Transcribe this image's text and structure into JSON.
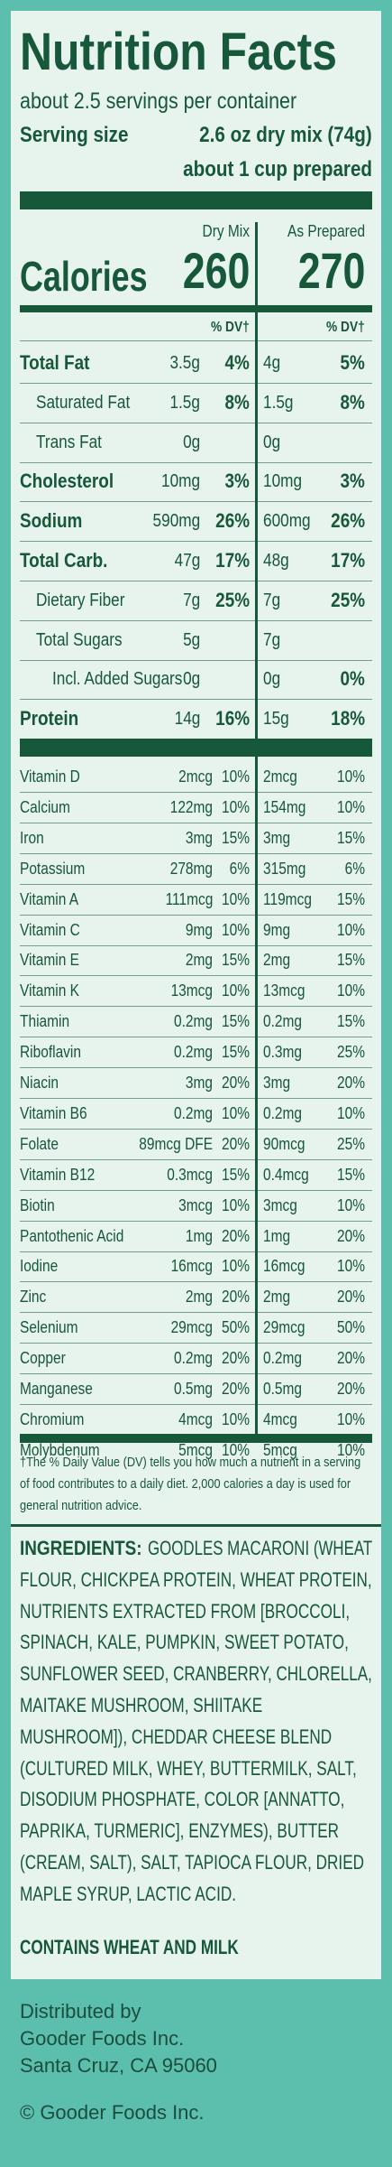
{
  "header": {
    "title": "Nutrition Facts",
    "servings": "about 2.5 servings per container",
    "serving_size_label": "Serving size",
    "serving_size": "2.6 oz dry mix (74g)",
    "serving_prepared": "about 1 cup prepared"
  },
  "columns": {
    "dry": "Dry Mix",
    "prepared": "As Prepared",
    "dv_heading": "% DV†"
  },
  "calories": {
    "label": "Calories",
    "dry": "260",
    "prepared": "270"
  },
  "nutrients": [
    {
      "name": "Total Fat",
      "dry": "3.5g",
      "dry_dv": "4%",
      "prep": "4g",
      "prep_dv": "5%"
    },
    {
      "name": "Saturated Fat",
      "dry": "1.5g",
      "dry_dv": "8%",
      "prep": "1.5g",
      "prep_dv": "8%"
    },
    {
      "name": "Trans Fat",
      "dry": "0g",
      "prep": "0g"
    },
    {
      "name": "Cholesterol",
      "dry": "10mg",
      "dry_dv": "3%",
      "prep": "10mg",
      "prep_dv": "3%"
    },
    {
      "name": "Sodium",
      "dry": "590mg",
      "dry_dv": "26%",
      "prep": "600mg",
      "prep_dv": "26%"
    },
    {
      "name": "Total Carb.",
      "dry": "47g",
      "dry_dv": "17%",
      "prep": "48g",
      "prep_dv": "17%"
    },
    {
      "name": "Dietary Fiber",
      "dry": "7g",
      "dry_dv": "25%",
      "prep": "7g",
      "prep_dv": "25%"
    },
    {
      "name": "Total Sugars",
      "dry": "5g",
      "prep": "7g"
    },
    {
      "name": "Incl. Added Sugars",
      "dry": "0g",
      "prep": "0g",
      "prep_dv": "0%"
    },
    {
      "name": "Protein",
      "dry": "14g",
      "dry_dv": "16%",
      "prep": "15g",
      "prep_dv": "18%"
    }
  ],
  "vitamins": [
    {
      "name": "Vitamin D",
      "dry": "2mcg",
      "dry_dv": "10%",
      "prep": "2mcg",
      "prep_dv": "10%"
    },
    {
      "name": "Calcium",
      "dry": "122mg",
      "dry_dv": "10%",
      "prep": "154mg",
      "prep_dv": "10%"
    },
    {
      "name": "Iron",
      "dry": "3mg",
      "dry_dv": "15%",
      "prep": "3mg",
      "prep_dv": "15%"
    },
    {
      "name": "Potassium",
      "dry": "278mg",
      "dry_dv": "6%",
      "prep": "315mg",
      "prep_dv": "6%"
    },
    {
      "name": "Vitamin A",
      "dry": "111mcg",
      "dry_dv": "10%",
      "prep": "119mcg",
      "prep_dv": "15%"
    },
    {
      "name": "Vitamin C",
      "dry": "9mg",
      "dry_dv": "10%",
      "prep": "9mg",
      "prep_dv": "10%"
    },
    {
      "name": "Vitamin E",
      "dry": "2mg",
      "dry_dv": "15%",
      "prep": "2mg",
      "prep_dv": "15%"
    },
    {
      "name": "Vitamin K",
      "dry": "13mcg",
      "dry_dv": "10%",
      "prep": "13mcg",
      "prep_dv": "10%"
    },
    {
      "name": "Thiamin",
      "dry": "0.2mg",
      "dry_dv": "15%",
      "prep": "0.2mg",
      "prep_dv": "15%"
    },
    {
      "name": "Riboflavin",
      "dry": "0.2mg",
      "dry_dv": "15%",
      "prep": "0.3mg",
      "prep_dv": "25%"
    },
    {
      "name": "Niacin",
      "dry": "3mg",
      "dry_dv": "20%",
      "prep": "3mg",
      "prep_dv": "20%"
    },
    {
      "name": "Vitamin B6",
      "dry": "0.2mg",
      "dry_dv": "10%",
      "prep": "0.2mg",
      "prep_dv": "10%"
    },
    {
      "name": "Folate",
      "dry": "89mcg DFE",
      "dry_dv": "20%",
      "prep": "90mcg",
      "prep_dv": "25%"
    },
    {
      "name": "Vitamin B12",
      "dry": "0.3mcg",
      "dry_dv": "15%",
      "prep": "0.4mcg",
      "prep_dv": "15%"
    },
    {
      "name": "Biotin",
      "dry": "3mcg",
      "dry_dv": "10%",
      "prep": "3mcg",
      "prep_dv": "10%"
    },
    {
      "name": "Pantothenic Acid",
      "dry": "1mg",
      "dry_dv": "20%",
      "prep": "1mg",
      "prep_dv": "20%"
    },
    {
      "name": "Iodine",
      "dry": "16mcg",
      "dry_dv": "10%",
      "prep": "16mcg",
      "prep_dv": "10%"
    },
    {
      "name": "Zinc",
      "dry": "2mg",
      "dry_dv": "20%",
      "prep": "2mg",
      "prep_dv": "20%"
    },
    {
      "name": "Selenium",
      "dry": "29mcg",
      "dry_dv": "50%",
      "prep": "29mcg",
      "prep_dv": "50%"
    },
    {
      "name": "Copper",
      "dry": "0.2mg",
      "dry_dv": "20%",
      "prep": "0.2mg",
      "prep_dv": "20%"
    },
    {
      "name": "Manganese",
      "dry": "0.5mg",
      "dry_dv": "20%",
      "prep": "0.5mg",
      "prep_dv": "20%"
    },
    {
      "name": "Chromium",
      "dry": "4mcg",
      "dry_dv": "10%",
      "prep": "4mcg",
      "prep_dv": "10%"
    },
    {
      "name": "Molybdenum",
      "dry": "5mcg",
      "dry_dv": "10%",
      "prep": "5mcg",
      "prep_dv": "10%"
    }
  ],
  "footnote": "†The % Daily Value (DV) tells you how much a nutrient in a serving of  food contributes to a daily diet. 2,000 calories a day is used for general nutrition advice.",
  "ingredients": {
    "label": "INGREDIENTS:",
    "lines": [
      "GOODLES MACARONI (WHEAT",
      "FLOUR, CHICKPEA PROTEIN, WHEAT PROTEIN,",
      "NUTRIENTS EXTRACTED FROM [BROCCOLI,",
      "SPINACH, KALE, PUMPKIN, SWEET POTATO,",
      "SUNFLOWER SEED, CRANBERRY, CHLORELLA,",
      "MAITAKE MUSHROOM, SHIITAKE",
      "MUSHROOM]), CHEDDAR CHEESE BLEND",
      "(CULTURED MILK, WHEY, BUTTERMILK, SALT,",
      "DISODIUM PHOSPHATE, COLOR [ANNATTO,",
      "PAPRIKA, TURMERIC], ENZYMES), BUTTER",
      "(CREAM, SALT), SALT, TAPIOCA FLOUR, DRIED",
      "MAPLE SYRUP, LACTIC ACID."
    ],
    "contains": "CONTAINS WHEAT AND MILK"
  },
  "distributor": {
    "lines": [
      "Distributed by",
      "Gooder Foods Inc.",
      "Santa Cruz, CA 95060"
    ],
    "copyright": "© Gooder Foods Inc."
  }
}
